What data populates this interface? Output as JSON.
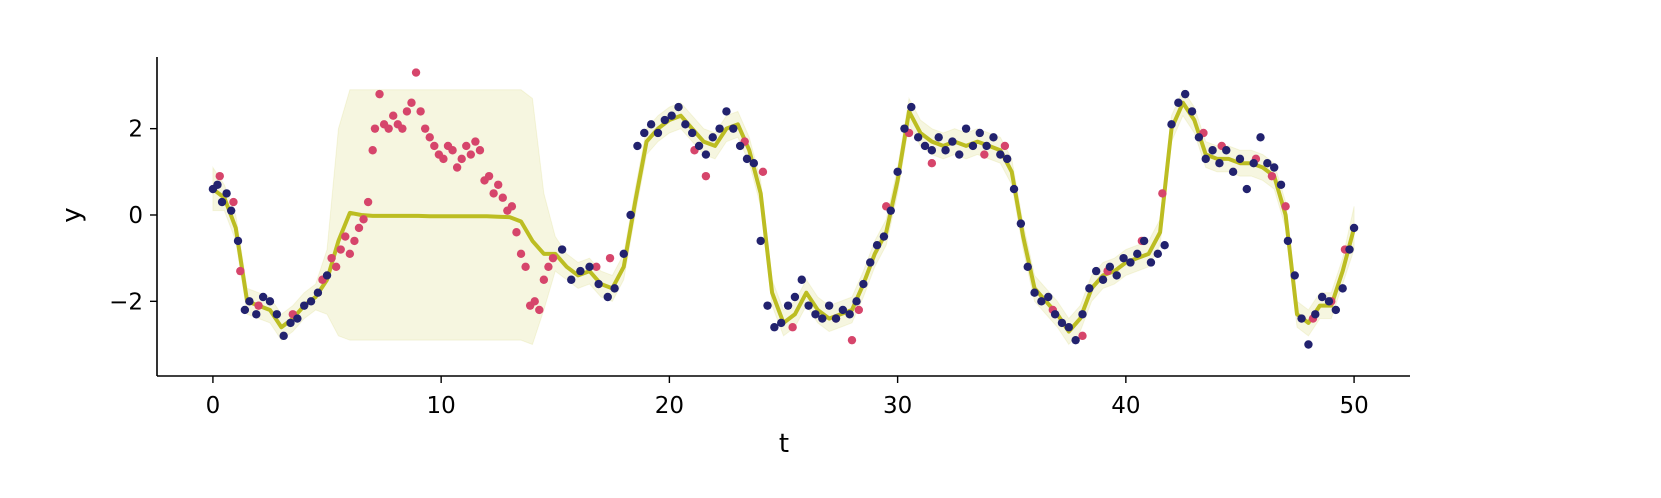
{
  "chart_data": {
    "type": "line",
    "x_label": "t",
    "y_label": "y",
    "xlim": [
      -2.45,
      52.45
    ],
    "ylim": [
      -3.73,
      3.66
    ],
    "xticks": [
      0,
      10,
      20,
      30,
      40,
      50
    ],
    "yticks": [
      {
        "value": -2,
        "label": "−2"
      },
      0,
      2
    ],
    "grid": false,
    "x": [
      0,
      0.5,
      1,
      1.5,
      2,
      2.5,
      3,
      3.5,
      4,
      4.5,
      5,
      5.5,
      6,
      6.5,
      7,
      7.5,
      8,
      8.5,
      9,
      9.5,
      10,
      10.5,
      11,
      11.5,
      12,
      12.5,
      13,
      13.5,
      14,
      14.5,
      15,
      15.5,
      16,
      16.5,
      17,
      17.5,
      18,
      18.5,
      19,
      19.5,
      20,
      20.5,
      21,
      21.5,
      22,
      22.5,
      23,
      23.5,
      24,
      24.5,
      25,
      25.5,
      26,
      26.5,
      27,
      27.5,
      28,
      28.5,
      29,
      29.5,
      30,
      30.5,
      31,
      31.5,
      32,
      32.5,
      33,
      33.5,
      34,
      34.5,
      35,
      35.5,
      36,
      36.5,
      37,
      37.5,
      38,
      38.5,
      39,
      39.5,
      40,
      40.5,
      41,
      41.5,
      42,
      42.5,
      43,
      43.5,
      44,
      44.5,
      45,
      45.5,
      46,
      46.5,
      47,
      47.5,
      48,
      48.5,
      49,
      49.5,
      50
    ],
    "series": [
      {
        "type": "band",
        "color": "#bcbd22",
        "upper": [
          1.1,
          0.7,
          0.0,
          -1.7,
          -1.8,
          -1.9,
          -2.3,
          -2.1,
          -1.8,
          -1.6,
          -0.8,
          2.0,
          2.9,
          2.9,
          2.9,
          2.9,
          2.9,
          2.9,
          2.9,
          2.9,
          2.9,
          2.9,
          2.9,
          2.9,
          2.9,
          2.9,
          2.9,
          2.9,
          2.7,
          0.5,
          -0.5,
          -0.9,
          -1.1,
          -1.0,
          -1.3,
          -1.4,
          -0.9,
          0.6,
          2.0,
          2.3,
          2.5,
          2.6,
          2.3,
          2.0,
          1.9,
          2.3,
          2.4,
          1.8,
          0.8,
          -1.5,
          -2.2,
          -2.0,
          -1.5,
          -1.9,
          -2.1,
          -2.0,
          -1.9,
          -1.3,
          -0.6,
          -0.1,
          1.1,
          2.7,
          2.2,
          2.0,
          1.9,
          2.0,
          1.9,
          2.0,
          1.9,
          1.8,
          1.3,
          -0.2,
          -1.4,
          -1.7,
          -2.0,
          -2.4,
          -2.1,
          -1.4,
          -1.1,
          -1.0,
          -0.8,
          -0.7,
          -0.6,
          -0.1,
          2.3,
          2.9,
          2.5,
          1.7,
          1.6,
          1.6,
          1.5,
          1.5,
          1.4,
          1.2,
          0.3,
          -2.0,
          -2.2,
          -1.8,
          -1.8,
          -1.0,
          0.2
        ],
        "lower": [
          0.1,
          0.1,
          -0.6,
          -2.3,
          -2.4,
          -2.5,
          -2.9,
          -2.7,
          -2.4,
          -2.2,
          -2.3,
          -2.8,
          -2.9,
          -2.9,
          -2.9,
          -2.9,
          -2.9,
          -2.9,
          -2.9,
          -2.9,
          -2.9,
          -2.9,
          -2.9,
          -2.9,
          -2.9,
          -2.9,
          -2.9,
          -2.9,
          -3.0,
          -2.2,
          -1.3,
          -1.5,
          -1.7,
          -1.6,
          -1.9,
          -2.0,
          -1.5,
          0.0,
          1.4,
          1.7,
          1.9,
          2.0,
          1.7,
          1.4,
          1.3,
          1.7,
          1.8,
          1.2,
          0.2,
          -2.1,
          -2.8,
          -2.6,
          -2.1,
          -2.5,
          -2.7,
          -2.6,
          -2.5,
          -1.9,
          -1.2,
          -0.7,
          0.5,
          2.1,
          1.6,
          1.4,
          1.3,
          1.4,
          1.3,
          1.4,
          1.3,
          1.2,
          0.7,
          -0.8,
          -2.0,
          -2.3,
          -2.6,
          -3.0,
          -2.7,
          -2.0,
          -1.7,
          -1.6,
          -1.4,
          -1.3,
          -1.2,
          -0.7,
          1.7,
          2.3,
          1.9,
          1.1,
          1.0,
          1.0,
          0.9,
          0.9,
          0.8,
          0.6,
          -0.3,
          -2.6,
          -2.8,
          -2.4,
          -2.4,
          -1.6,
          -0.8
        ]
      },
      {
        "type": "line",
        "color": "#bcbd22",
        "values": [
          0.6,
          0.4,
          -0.3,
          -2.0,
          -2.1,
          -2.2,
          -2.6,
          -2.4,
          -2.1,
          -1.9,
          -1.5,
          -0.6,
          0.05,
          0.0,
          -0.02,
          -0.02,
          -0.02,
          -0.02,
          -0.02,
          -0.03,
          -0.03,
          -0.03,
          -0.03,
          -0.03,
          -0.03,
          -0.04,
          -0.05,
          -0.15,
          -0.6,
          -0.9,
          -0.9,
          -1.2,
          -1.4,
          -1.3,
          -1.6,
          -1.7,
          -1.2,
          0.3,
          1.7,
          2.0,
          2.2,
          2.3,
          2.0,
          1.7,
          1.6,
          2.0,
          2.1,
          1.5,
          0.5,
          -1.8,
          -2.5,
          -2.3,
          -1.8,
          -2.2,
          -2.4,
          -2.3,
          -2.2,
          -1.6,
          -0.9,
          -0.4,
          0.8,
          2.4,
          1.9,
          1.7,
          1.6,
          1.7,
          1.6,
          1.7,
          1.6,
          1.5,
          1.0,
          -0.5,
          -1.7,
          -2.0,
          -2.3,
          -2.7,
          -2.4,
          -1.7,
          -1.4,
          -1.3,
          -1.1,
          -1.0,
          -0.9,
          -0.4,
          2.0,
          2.6,
          2.2,
          1.4,
          1.3,
          1.3,
          1.2,
          1.2,
          1.1,
          0.9,
          0.0,
          -2.3,
          -2.5,
          -2.1,
          -2.1,
          -1.3,
          -0.3
        ]
      },
      {
        "type": "scatter",
        "color": "#d6456b",
        "x": [
          0.3,
          0.9,
          1.2,
          2.0,
          3.5,
          4.8,
          5.2,
          5.4,
          5.6,
          5.8,
          6.0,
          6.2,
          6.4,
          6.6,
          6.8,
          7.0,
          7.1,
          7.3,
          7.5,
          7.7,
          7.9,
          8.1,
          8.3,
          8.5,
          8.7,
          8.9,
          9.1,
          9.3,
          9.5,
          9.7,
          9.9,
          10.1,
          10.3,
          10.5,
          10.7,
          10.9,
          11.1,
          11.3,
          11.5,
          11.7,
          11.9,
          12.1,
          12.3,
          12.5,
          12.7,
          12.9,
          13.1,
          13.3,
          13.5,
          13.7,
          13.9,
          14.1,
          14.3,
          14.5,
          14.7,
          14.9,
          16.8,
          17.4,
          21.1,
          21.6,
          23.3,
          24.1,
          25.4,
          27.3,
          28.0,
          28.3,
          29.5,
          30.5,
          31.5,
          33.8,
          34.7,
          36.8,
          38.1,
          39.2,
          40.7,
          41.6,
          43.4,
          44.2,
          45.7,
          46.4,
          47.0,
          48.2,
          49.0,
          49.6
        ],
        "values": [
          0.9,
          0.3,
          -1.3,
          -2.1,
          -2.3,
          -1.5,
          -1.0,
          -1.2,
          -0.8,
          -0.5,
          -0.9,
          -0.6,
          -0.3,
          -0.1,
          0.3,
          1.5,
          2.0,
          2.8,
          2.1,
          2.0,
          2.3,
          2.1,
          2.0,
          2.4,
          2.6,
          3.3,
          2.4,
          2.0,
          1.8,
          1.6,
          1.4,
          1.3,
          1.6,
          1.5,
          1.1,
          1.3,
          1.6,
          1.4,
          1.7,
          1.5,
          0.8,
          0.9,
          0.5,
          0.7,
          0.4,
          0.1,
          0.2,
          -0.4,
          -0.9,
          -1.2,
          -2.1,
          -2.0,
          -2.2,
          -1.5,
          -1.2,
          -1.0,
          -1.2,
          -1.0,
          1.5,
          0.9,
          1.7,
          1.0,
          -2.6,
          -2.4,
          -2.9,
          -2.2,
          0.2,
          1.9,
          1.2,
          1.4,
          1.6,
          -2.2,
          -2.8,
          -1.3,
          -0.6,
          0.5,
          1.9,
          1.6,
          1.3,
          0.9,
          0.2,
          -2.4,
          -2.0,
          -0.8
        ]
      },
      {
        "type": "scatter",
        "color": "#22226e",
        "x": [
          0,
          0.2,
          0.4,
          0.6,
          0.8,
          1.1,
          1.4,
          1.6,
          1.9,
          2.2,
          2.5,
          2.8,
          3.1,
          3.4,
          3.7,
          4.0,
          4.3,
          4.6,
          5.0,
          15.3,
          15.7,
          16.1,
          16.5,
          16.9,
          17.3,
          17.6,
          18.0,
          18.3,
          18.6,
          18.9,
          19.2,
          19.5,
          19.8,
          20.1,
          20.4,
          20.7,
          21.0,
          21.3,
          21.6,
          21.9,
          22.2,
          22.5,
          22.8,
          23.1,
          23.4,
          23.7,
          24.0,
          24.3,
          24.6,
          24.9,
          25.2,
          25.5,
          25.8,
          26.1,
          26.4,
          26.7,
          27.0,
          27.3,
          27.6,
          27.9,
          28.2,
          28.5,
          28.8,
          29.1,
          29.4,
          29.7,
          30.0,
          30.3,
          30.6,
          30.9,
          31.2,
          31.5,
          31.8,
          32.1,
          32.4,
          32.7,
          33.0,
          33.3,
          33.6,
          33.9,
          34.2,
          34.5,
          34.8,
          35.1,
          35.4,
          35.7,
          36.0,
          36.3,
          36.6,
          36.9,
          37.2,
          37.5,
          37.8,
          38.1,
          38.4,
          38.7,
          39.0,
          39.3,
          39.6,
          39.9,
          40.2,
          40.5,
          40.8,
          41.1,
          41.4,
          41.7,
          42.0,
          42.3,
          42.6,
          42.9,
          43.2,
          43.5,
          43.8,
          44.1,
          44.4,
          44.7,
          45.0,
          45.3,
          45.6,
          45.9,
          46.2,
          46.5,
          46.8,
          47.1,
          47.4,
          47.7,
          48.0,
          48.3,
          48.6,
          48.9,
          49.2,
          49.5,
          49.8,
          50.0
        ],
        "values": [
          0.6,
          0.7,
          0.3,
          0.5,
          0.1,
          -0.6,
          -2.2,
          -2.0,
          -2.3,
          -1.9,
          -2.0,
          -2.3,
          -2.8,
          -2.5,
          -2.4,
          -2.1,
          -2.0,
          -1.8,
          -1.4,
          -0.8,
          -1.5,
          -1.3,
          -1.2,
          -1.6,
          -1.9,
          -1.7,
          -0.9,
          0.0,
          1.6,
          1.9,
          2.1,
          1.9,
          2.2,
          2.3,
          2.5,
          2.1,
          1.9,
          1.6,
          1.4,
          1.8,
          2.0,
          2.4,
          2.0,
          1.6,
          1.3,
          1.2,
          -0.6,
          -2.1,
          -2.6,
          -2.5,
          -2.1,
          -1.9,
          -1.5,
          -2.1,
          -2.3,
          -2.4,
          -2.1,
          -2.4,
          -2.2,
          -2.3,
          -2.0,
          -1.6,
          -1.1,
          -0.7,
          -0.5,
          0.1,
          1.0,
          2.0,
          2.5,
          1.8,
          1.6,
          1.5,
          1.8,
          1.5,
          1.7,
          1.4,
          2.0,
          1.6,
          1.9,
          1.6,
          1.8,
          1.4,
          1.3,
          0.6,
          -0.2,
          -1.2,
          -1.8,
          -2.0,
          -1.9,
          -2.3,
          -2.5,
          -2.6,
          -2.9,
          -2.3,
          -1.7,
          -1.3,
          -1.5,
          -1.2,
          -1.4,
          -1.0,
          -1.1,
          -0.9,
          -0.6,
          -1.1,
          -0.9,
          -0.7,
          2.1,
          2.6,
          2.8,
          2.4,
          1.8,
          1.3,
          1.5,
          1.2,
          1.5,
          1.0,
          1.3,
          0.6,
          1.2,
          1.8,
          1.2,
          1.1,
          0.7,
          -0.6,
          -1.4,
          -2.4,
          -3.0,
          -2.3,
          -1.9,
          -2.0,
          -2.2,
          -1.7,
          -0.8,
          -0.3
        ]
      }
    ]
  }
}
